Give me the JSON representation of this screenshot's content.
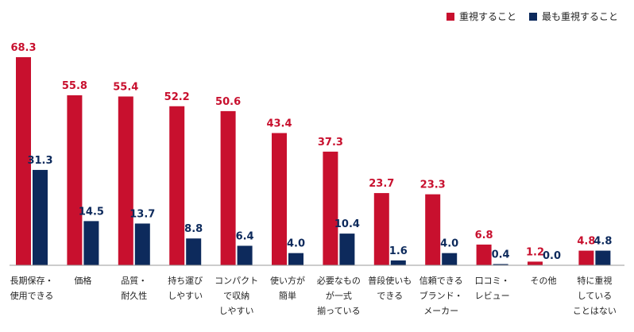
{
  "chart_data": {
    "type": "bar",
    "title": "",
    "xlabel": "",
    "ylabel": "",
    "ylim": [
      0,
      68.3
    ],
    "grid": false,
    "legend_position": "top-right",
    "categories": [
      [
        "長期保存・",
        "使用できる"
      ],
      [
        "価格"
      ],
      [
        "品質・",
        "耐久性"
      ],
      [
        "持ち運び",
        "しやすい"
      ],
      [
        "コンパクト",
        "で収納",
        "しやすい"
      ],
      [
        "使い方が",
        "簡単"
      ],
      [
        "必要なもの",
        "が一式",
        "揃っている"
      ],
      [
        "普段使いも",
        "できる"
      ],
      [
        "信頼できる",
        "ブランド・",
        "メーカー"
      ],
      [
        "口コミ・",
        "レビュー"
      ],
      [
        "その他"
      ],
      [
        "特に重視",
        "している",
        "ことはない"
      ]
    ],
    "series": [
      {
        "name": "重視すること",
        "color": "#c8102e",
        "values": [
          68.3,
          55.8,
          55.4,
          52.2,
          50.6,
          43.4,
          37.3,
          23.7,
          23.3,
          6.8,
          1.2,
          4.8
        ]
      },
      {
        "name": "最も重視すること",
        "color": "#0d2a5c",
        "values": [
          31.3,
          14.5,
          13.7,
          8.8,
          6.4,
          4.0,
          10.4,
          1.6,
          4.0,
          0.4,
          0.0,
          4.8
        ]
      }
    ]
  }
}
